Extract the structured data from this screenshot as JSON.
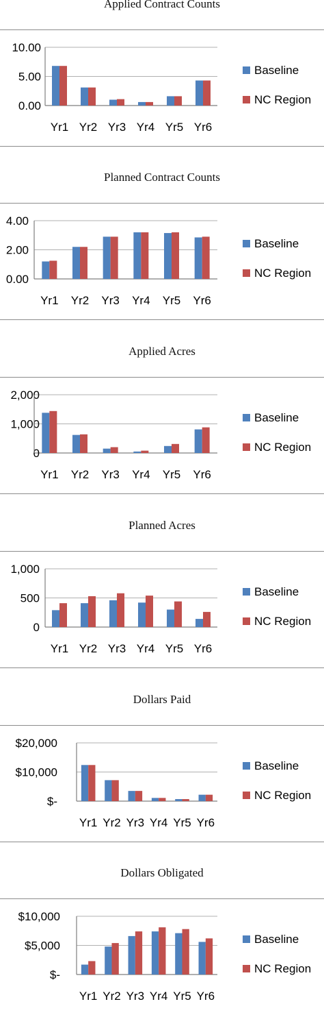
{
  "colors": {
    "baseline": "#4f81bd",
    "nc_region": "#c0504d",
    "axis": "#7f7f7f",
    "divider": "#8c8c8c"
  },
  "chart_data": [
    {
      "type": "bar",
      "title": "Applied Contract Counts",
      "categories": [
        "Yr1",
        "Yr2",
        "Yr3",
        "Yr4",
        "Yr5",
        "Yr6"
      ],
      "series": [
        {
          "name": "Baseline",
          "values": [
            6.8,
            3.1,
            1.0,
            0.6,
            1.6,
            4.3
          ]
        },
        {
          "name": "NC Region",
          "values": [
            6.8,
            3.1,
            1.1,
            0.6,
            1.6,
            4.3
          ]
        }
      ],
      "ylim": [
        0,
        10
      ],
      "yticks": [
        "0.00",
        "5.00",
        "10.00"
      ],
      "legend": "right"
    },
    {
      "type": "bar",
      "title": "Planned Contract Counts",
      "categories": [
        "Yr1",
        "Yr2",
        "Yr3",
        "Yr4",
        "Yr5",
        "Yr6"
      ],
      "series": [
        {
          "name": "Baseline",
          "values": [
            1.2,
            2.2,
            2.9,
            3.2,
            3.15,
            2.85
          ]
        },
        {
          "name": "NC Region",
          "values": [
            1.25,
            2.2,
            2.9,
            3.2,
            3.2,
            2.9
          ]
        }
      ],
      "ylim": [
        0,
        4
      ],
      "yticks": [
        "0.00",
        "2.00",
        "4.00"
      ],
      "legend": "right"
    },
    {
      "type": "bar",
      "title": "Applied Acres",
      "categories": [
        "Yr1",
        "Yr2",
        "Yr3",
        "Yr4",
        "Yr5",
        "Yr6"
      ],
      "series": [
        {
          "name": "Baseline",
          "values": [
            1380,
            620,
            150,
            50,
            240,
            810
          ]
        },
        {
          "name": "NC Region",
          "values": [
            1440,
            640,
            200,
            80,
            310,
            880
          ]
        }
      ],
      "ylim": [
        0,
        2000
      ],
      "yticks": [
        "0",
        "1,000",
        "2,000"
      ],
      "legend": "right"
    },
    {
      "type": "bar",
      "title": "Planned Acres",
      "categories": [
        "Yr1",
        "Yr2",
        "Yr3",
        "Yr4",
        "Yr5",
        "Yr6"
      ],
      "series": [
        {
          "name": "Baseline",
          "values": [
            290,
            410,
            460,
            420,
            300,
            140
          ]
        },
        {
          "name": "NC Region",
          "values": [
            410,
            530,
            580,
            540,
            440,
            260
          ]
        }
      ],
      "ylim": [
        0,
        1000
      ],
      "yticks": [
        "0",
        "500",
        "1,000"
      ],
      "legend": "right"
    },
    {
      "type": "bar",
      "title": "Dollars Paid",
      "categories": [
        "Yr1",
        "Yr2",
        "Yr3",
        "Yr4",
        "Yr5",
        "Yr6"
      ],
      "series": [
        {
          "name": "Baseline",
          "values": [
            12400,
            7200,
            3500,
            1100,
            700,
            2200
          ]
        },
        {
          "name": "NC Region",
          "values": [
            12400,
            7200,
            3500,
            1100,
            700,
            2200
          ]
        }
      ],
      "ylim": [
        0,
        20000
      ],
      "yticks": [
        "$-",
        "$10,000",
        "$20,000"
      ],
      "legend": "right"
    },
    {
      "type": "bar",
      "title": "Dollars Obligated",
      "categories": [
        "Yr1",
        "Yr2",
        "Yr3",
        "Yr4",
        "Yr5",
        "Yr6"
      ],
      "series": [
        {
          "name": "Baseline",
          "values": [
            1700,
            4800,
            6600,
            7400,
            7100,
            5600
          ]
        },
        {
          "name": "NC Region",
          "values": [
            2300,
            5400,
            7400,
            8100,
            7800,
            6200
          ]
        }
      ],
      "ylim": [
        0,
        10000
      ],
      "yticks": [
        "$-",
        "$5,000",
        "$10,000"
      ],
      "legend": "right"
    }
  ]
}
